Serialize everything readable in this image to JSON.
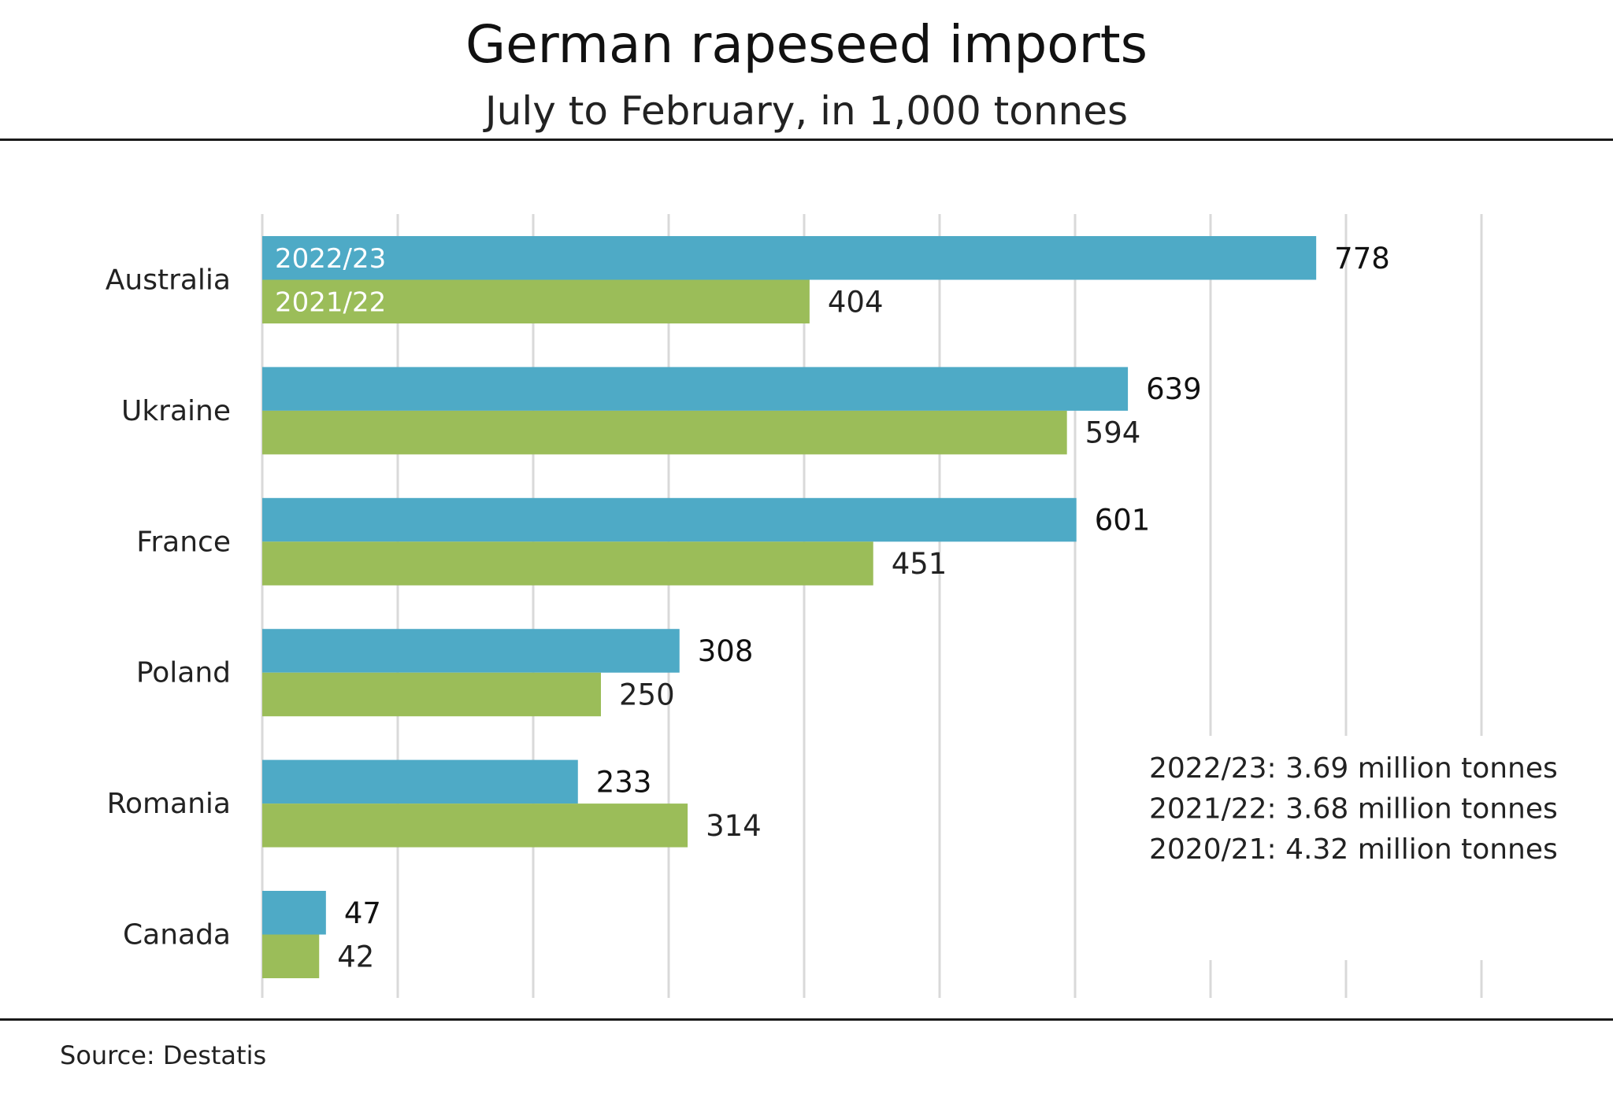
{
  "chart_data": {
    "type": "bar",
    "orientation": "horizontal",
    "title": "German rapeseed imports",
    "subtitle": "July to February, in 1,000 tonnes",
    "categories": [
      "Australia",
      "Ukraine",
      "France",
      "Poland",
      "Romania",
      "Canada"
    ],
    "series": [
      {
        "name": "2022/23",
        "color": "#4eaac6",
        "values": [
          778,
          639,
          601,
          308,
          233,
          47
        ]
      },
      {
        "name": "2021/22",
        "color": "#9bbd59",
        "values": [
          404,
          594,
          451,
          250,
          314,
          42
        ]
      }
    ],
    "xlim": [
      0,
      900
    ],
    "grid_step": 100,
    "grid": true,
    "axis_labels_shown": false,
    "totals": [
      "2022/23: 3.69 million tonnes",
      "2021/22: 3.68 million tonnes",
      "2020/21: 4.32 million tonnes"
    ],
    "source": "Source:  Destatis"
  }
}
